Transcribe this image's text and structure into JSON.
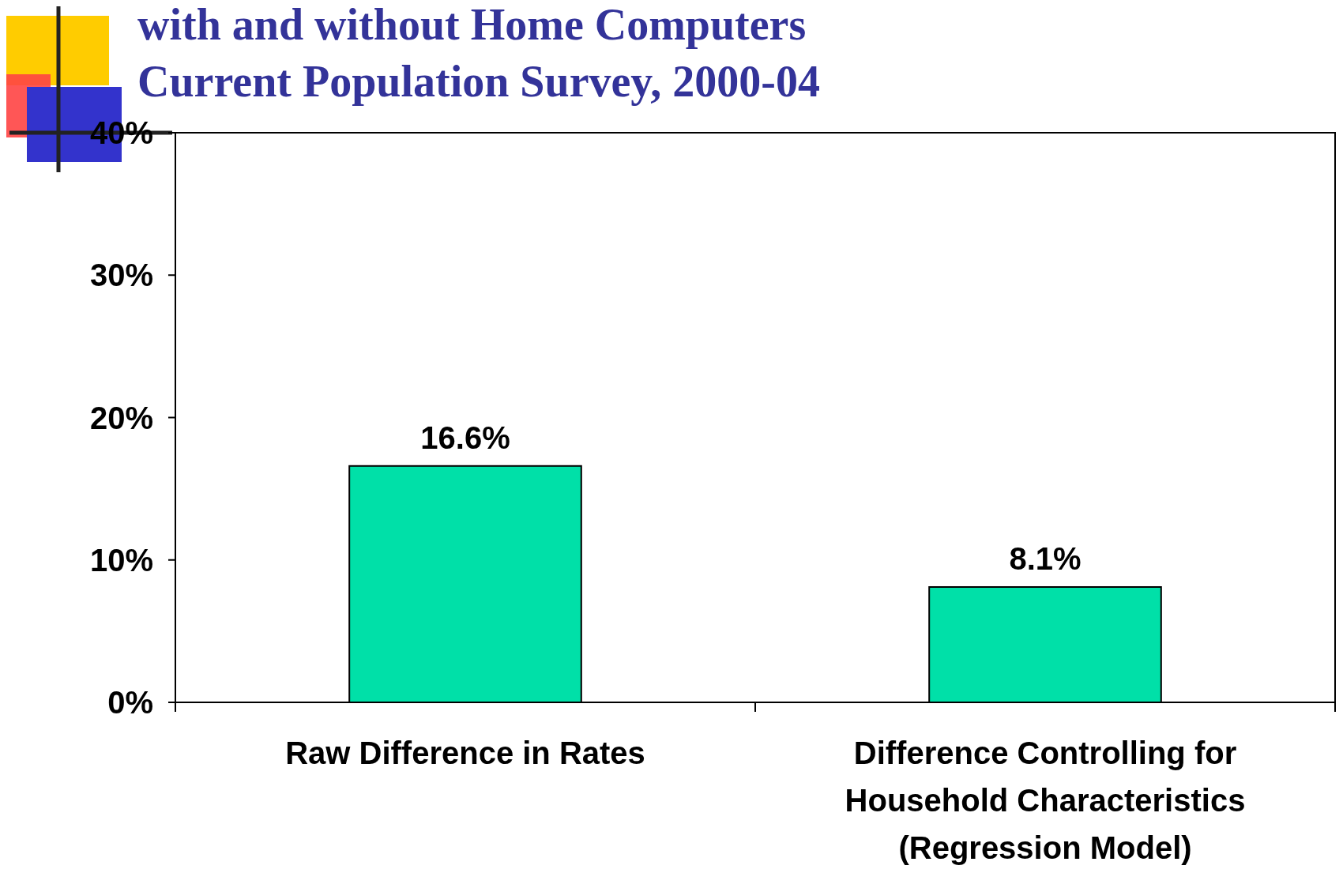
{
  "chart_data": {
    "type": "bar",
    "title": "with and without Home Computers\nCurrent Population Survey, 2000-04",
    "categories": [
      "Raw Difference in Rates",
      "Difference Controlling for Household Characteristics (Regression Model)"
    ],
    "values": [
      16.6,
      8.1
    ],
    "color": "#00e0a8",
    "value_labels": [
      "16.6%",
      "8.1%"
    ],
    "ylim": [
      0,
      40
    ],
    "yticks": [
      {
        "value": 0,
        "label": "0%"
      },
      {
        "value": 10,
        "label": "10%"
      },
      {
        "value": 20,
        "label": "20%"
      },
      {
        "value": 30,
        "label": "30%"
      },
      {
        "value": 40,
        "label": "40%"
      }
    ],
    "grid": false
  }
}
